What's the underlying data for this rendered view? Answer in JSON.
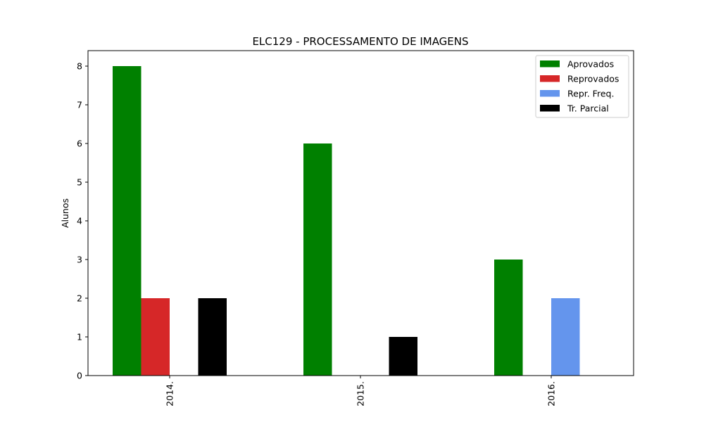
{
  "chart_data": {
    "type": "bar",
    "title": "ELC129 - PROCESSAMENTO DE IMAGENS",
    "xlabel": "",
    "ylabel": "Alunos",
    "categories": [
      "2014.",
      "2015.",
      "2016."
    ],
    "series": [
      {
        "name": "Aprovados",
        "color": "#008000",
        "values": [
          8,
          6,
          3
        ]
      },
      {
        "name": "Reprovados",
        "color": "#d62728",
        "values": [
          2,
          0,
          0
        ]
      },
      {
        "name": "Repr. Freq.",
        "color": "#6495ed",
        "values": [
          0,
          0,
          2
        ]
      },
      {
        "name": "Tr. Parcial",
        "color": "#000000",
        "values": [
          2,
          1,
          0
        ]
      }
    ],
    "yticks": [
      0,
      1,
      2,
      3,
      4,
      5,
      6,
      7,
      8
    ],
    "ylim": [
      0,
      8.4
    ],
    "grid": false,
    "legend_position": "top-right"
  }
}
